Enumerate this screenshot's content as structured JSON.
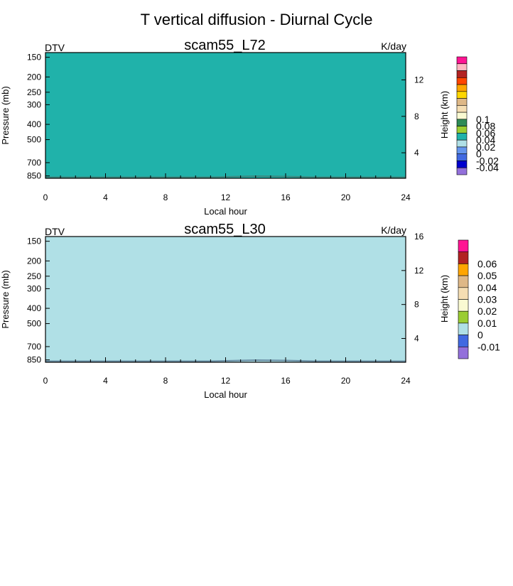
{
  "figure": {
    "title": "T vertical diffusion - Diurnal Cycle"
  },
  "chart_data": [
    {
      "type": "heatmap",
      "title": "scam55_L72",
      "variable_label": "DTV",
      "units_label": "K/day",
      "xlabel": "Local hour",
      "ylabel": "Pressure (mb)",
      "right_ylabel": "Height (km)",
      "xlim": [
        0,
        24
      ],
      "x_ticks": [
        0,
        4,
        8,
        12,
        16,
        20,
        24
      ],
      "y_scale": "log-pressure, inverted",
      "pressure_ticks": [
        150,
        200,
        250,
        300,
        400,
        500,
        700,
        850
      ],
      "height_ticks": [
        4,
        8,
        12
      ],
      "field_color": "#20b2aa",
      "surface_color": "#3a8a80",
      "colorbar": {
        "labels": [
          "0.1",
          "0.08",
          "0.06",
          "0.04",
          "0.02",
          "0",
          "-0.02",
          "-0.04"
        ],
        "colors": [
          "#ff1493",
          "#ffb6c1",
          "#b22222",
          "#ff4500",
          "#ffa500",
          "#ffd700",
          "#deb887",
          "#f5deb3",
          "#fafad2",
          "#2e8b57",
          "#9acd32",
          "#20b2aa",
          "#b0e0e6",
          "#6495ed",
          "#4169e1",
          "#0000cd",
          "#9370db"
        ]
      }
    },
    {
      "type": "heatmap",
      "title": "scam55_L30",
      "variable_label": "DTV",
      "units_label": "K/day",
      "xlabel": "Local hour",
      "ylabel": "Pressure (mb)",
      "right_ylabel": "Height (km)",
      "xlim": [
        0,
        24
      ],
      "x_ticks": [
        0,
        4,
        8,
        12,
        16,
        20,
        24
      ],
      "y_scale": "log-pressure, inverted",
      "pressure_ticks": [
        150,
        200,
        250,
        300,
        400,
        500,
        700,
        850
      ],
      "height_ticks": [
        4,
        8,
        12,
        16
      ],
      "field_color": "#b0e0e6",
      "surface_color": "#6a8fa6",
      "colorbar": {
        "labels": [
          "0.06",
          "0.05",
          "0.04",
          "0.03",
          "0.02",
          "0.01",
          "0",
          "-0.01"
        ],
        "colors": [
          "#ff1493",
          "#b22222",
          "#ffa500",
          "#deb887",
          "#f5deb3",
          "#fafad2",
          "#9acd32",
          "#b0e0e6",
          "#4169e1",
          "#9370db"
        ]
      }
    }
  ]
}
